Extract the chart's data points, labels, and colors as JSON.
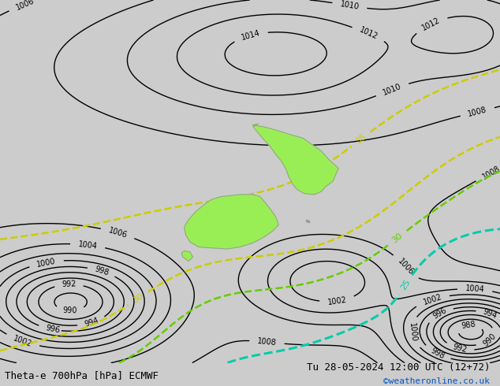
{
  "title_left": "Theta-e 700hPa [hPa] ECMWF",
  "title_right": "Tu 28-05-2024 12:00 UTC (12+72)",
  "copyright": "©weatheronline.co.uk",
  "bg_color": "#cccccc",
  "map_bg_color": "#cccccc",
  "isobar_color": "#000000",
  "theta_yellow_color": "#cccc00",
  "theta_green_color": "#66cc00",
  "theta_cyan_color": "#00ccaa",
  "theta_blue_color": "#0088ff",
  "nz_fill_color": "#99ee55",
  "nz_border_color": "#999999",
  "isobar_linewidth": 1.0,
  "theta_linewidth": 1.8,
  "title_fontsize": 9,
  "label_fontsize": 7,
  "figsize": [
    6.34,
    4.9
  ],
  "dpi": 100,
  "xlim": [
    155,
    190
  ],
  "ylim": [
    -58,
    -22
  ]
}
